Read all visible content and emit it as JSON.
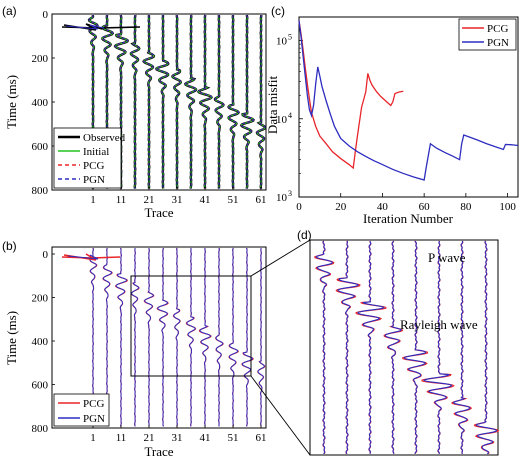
{
  "colors": {
    "observed": "#000000",
    "initial": "#22c422",
    "pcg": "#e8262b",
    "pgn": "#2d2dbf"
  },
  "chart_data": [
    {
      "panel": "(a)",
      "type": "line",
      "xlabel": "Trace",
      "ylabel": "Time (ms)",
      "xticks": [
        "1",
        "11",
        "21",
        "31",
        "41",
        "51",
        "61"
      ],
      "yticks": [
        "0",
        "200",
        "400",
        "600",
        "800"
      ],
      "ylim": [
        0,
        800
      ],
      "y_reversed": true,
      "legend": [
        "Observed",
        "Initial",
        "PCG",
        "PGN"
      ],
      "legend_position": "bottom-left",
      "traces": [
        1,
        6,
        11,
        16,
        21,
        26,
        31,
        36,
        41,
        46,
        51,
        56,
        61
      ],
      "series": [
        {
          "name": "Observed"
        },
        {
          "name": "Initial"
        },
        {
          "name": "PCG"
        },
        {
          "name": "PGN"
        }
      ]
    },
    {
      "panel": "(b)",
      "type": "line",
      "xlabel": "Trace",
      "ylabel": "Time (ms)",
      "xticks": [
        "1",
        "11",
        "21",
        "31",
        "41",
        "51",
        "61"
      ],
      "yticks": [
        "0",
        "200",
        "400",
        "600",
        "800"
      ],
      "ylim": [
        0,
        800
      ],
      "y_reversed": true,
      "legend": [
        "PCG",
        "PGN"
      ],
      "legend_position": "bottom-left",
      "zoom_box": {
        "trace_start": 19,
        "trace_end": 64,
        "time_start": 130,
        "time_end": 590
      },
      "series": [
        {
          "name": "PCG"
        },
        {
          "name": "PGN"
        }
      ]
    },
    {
      "panel": "(c)",
      "type": "line",
      "xlabel": "Iteration Number",
      "ylabel": "Data misfit",
      "xlim": [
        0,
        105
      ],
      "ylim": [
        1000,
        200000
      ],
      "y_scale": "log",
      "xticks": [
        "0",
        "20",
        "40",
        "60",
        "80",
        "100"
      ],
      "yticks": [
        "10",
        "10",
        "10"
      ],
      "ytick_exponents": [
        "3",
        "4",
        "5"
      ],
      "legend": [
        "PCG",
        "PGN"
      ],
      "legend_position": "top-right",
      "series": [
        {
          "name": "PCG",
          "x": [
            0,
            1,
            2,
            3,
            4,
            5,
            6,
            8,
            10,
            13,
            16,
            20,
            24,
            26,
            27,
            28,
            30,
            32,
            33,
            34,
            35,
            37,
            39,
            42,
            44,
            45,
            46,
            48,
            50
          ],
          "y": [
            180000,
            120000,
            75000,
            45000,
            28000,
            18000,
            12000,
            8000,
            6000,
            4800,
            3800,
            3100,
            2600,
            2350,
            3800,
            6000,
            14000,
            22000,
            38000,
            31000,
            27000,
            22500,
            19500,
            16500,
            14800,
            16500,
            21000,
            22000,
            22500
          ]
        },
        {
          "name": "PGN",
          "x": [
            0,
            1,
            2,
            3,
            4,
            5,
            6,
            7,
            8,
            9,
            10,
            11,
            13,
            15,
            17,
            20,
            24,
            28,
            32,
            36,
            40,
            45,
            50,
            55,
            60,
            61,
            63,
            66,
            70,
            74,
            77,
            78,
            79,
            82,
            86,
            90,
            94,
            98,
            99,
            102,
            105
          ],
          "y": [
            180000,
            110000,
            62000,
            35000,
            20000,
            13000,
            11000,
            15000,
            28000,
            46000,
            35000,
            26000,
            17000,
            11500,
            8000,
            5600,
            4500,
            3800,
            3300,
            2900,
            2600,
            2250,
            2000,
            1800,
            1650,
            2400,
            4800,
            4200,
            3700,
            3300,
            3000,
            4800,
            6200,
            5800,
            5300,
            4800,
            4400,
            4050,
            4700,
            4650,
            4550
          ]
        }
      ]
    },
    {
      "panel": "(d)",
      "type": "line",
      "annotations": [
        "P wave",
        "Rayleigh wave"
      ],
      "series": [
        {
          "name": "PCG"
        },
        {
          "name": "PGN"
        }
      ]
    }
  ]
}
